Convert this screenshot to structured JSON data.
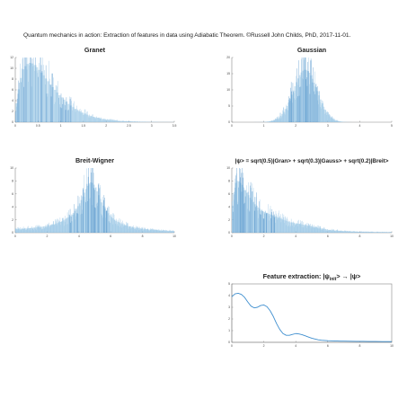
{
  "header": {
    "caption": "Quantum mechanics in action: Extraction of features in data using Adiabatic Theorem. ©Russell John Childs, PhD, 2017-11-01."
  },
  "colors": {
    "bar": "#8fc0e2",
    "bar_dense": "#3f88c5",
    "curve": "#3f8fcf",
    "axis": "#888888",
    "text": "#222222"
  },
  "chart_data": [
    {
      "id": "granet",
      "type": "bar",
      "title": "Granet",
      "xlim": [
        0,
        3.5
      ],
      "ylim": [
        0,
        12
      ],
      "xticks": [
        0,
        0.5,
        1,
        1.5,
        2,
        2.5,
        3,
        3.5
      ],
      "xtick_labels": [
        "0",
        "0.5",
        "1",
        "1.5",
        "2",
        "2.5",
        "3",
        "3.5"
      ],
      "yticks": [
        0,
        2,
        4,
        6,
        8,
        10,
        12
      ],
      "ytick_labels": [
        "0",
        "2",
        "4",
        "6",
        "8",
        "10",
        "12"
      ],
      "series": [
        {
          "x_start": 0.05,
          "x_step": 0.05,
          "values": [
            3.5,
            6.1,
            8.2,
            9.8,
            10.4,
            10.8,
            11.0,
            10.9,
            10.6,
            10.2,
            9.7,
            9.2,
            8.7,
            8.1,
            7.6,
            7.0,
            6.5,
            6.0,
            5.5,
            5.0,
            4.6,
            4.2,
            3.8,
            3.4,
            3.1,
            2.8,
            2.5,
            2.2,
            2.0,
            1.8,
            1.6,
            1.4,
            1.25,
            1.1,
            1.0,
            0.9,
            0.8,
            0.7,
            0.62,
            0.55,
            0.5,
            0.44,
            0.4,
            0.36,
            0.32,
            0.28,
            0.25,
            0.22,
            0.2,
            0.18,
            0.16,
            0.14,
            0.12,
            0.11,
            0.1,
            0.09,
            0.08,
            0.07,
            0.06,
            0.05,
            0.05,
            0.04,
            0.04,
            0.03,
            0.03,
            0.03,
            0.02,
            0.02,
            0.02,
            0.02
          ]
        }
      ]
    },
    {
      "id": "gaussian",
      "type": "bar",
      "title": "Gaussian",
      "xlim": [
        0,
        5
      ],
      "ylim": [
        0,
        20
      ],
      "xticks": [
        0,
        1,
        2,
        3,
        4,
        5
      ],
      "xtick_labels": [
        "0",
        "1",
        "2",
        "3",
        "4",
        "5"
      ],
      "yticks": [
        0,
        5,
        10,
        15,
        20
      ],
      "ytick_labels": [
        "0",
        "5",
        "10",
        "15",
        "20"
      ],
      "series": [
        {
          "x_start": 0.05,
          "x_step": 0.05,
          "values": [
            0.0,
            0.0,
            0.0,
            0.0,
            0.0,
            0.0,
            0.0,
            0.0,
            0.0,
            0.0,
            0.0,
            0.0,
            0.0,
            0.0,
            0.01,
            0.01,
            0.01,
            0.02,
            0.03,
            0.05,
            0.08,
            0.11,
            0.16,
            0.23,
            0.33,
            0.46,
            0.63,
            0.86,
            1.15,
            1.52,
            1.99,
            2.56,
            3.25,
            4.07,
            5.01,
            6.07,
            7.24,
            8.49,
            9.79,
            11.1,
            12.37,
            13.54,
            14.56,
            15.37,
            15.92,
            16.19,
            16.17,
            15.86,
            15.27,
            14.44,
            13.41,
            12.22,
            10.94,
            9.62,
            8.3,
            7.04,
            5.86,
            4.8,
            3.85,
            3.04,
            2.36,
            1.8,
            1.35,
            0.99,
            0.71,
            0.5,
            0.35,
            0.23,
            0.15,
            0.1,
            0.06,
            0.04,
            0.02,
            0.01,
            0.01,
            0.0,
            0.0,
            0.0,
            0.0,
            0.0,
            0.0,
            0.0,
            0.0,
            0.0,
            0.0,
            0.0,
            0.0,
            0.0,
            0.0,
            0.0,
            0.0,
            0.0,
            0.0,
            0.0,
            0.0,
            0.0,
            0.0,
            0.0,
            0.0,
            0.0
          ]
        }
      ]
    },
    {
      "id": "breit-wigner",
      "type": "bar",
      "title": "Breit-Wigner",
      "xlim": [
        0,
        10
      ],
      "ylim": [
        0,
        10
      ],
      "xticks": [
        0,
        2,
        4,
        6,
        8,
        10
      ],
      "xtick_labels": [
        "0",
        "2",
        "4",
        "6",
        "8",
        "10"
      ],
      "yticks": [
        0,
        2,
        4,
        6,
        8,
        10
      ],
      "ytick_labels": [
        "0",
        "2",
        "4",
        "6",
        "8",
        "10"
      ],
      "series": [
        {
          "x_start": 0.1,
          "x_step": 0.1,
          "values": [
            0.55,
            0.57,
            0.58,
            0.6,
            0.62,
            0.63,
            0.65,
            0.67,
            0.69,
            0.71,
            0.74,
            0.76,
            0.79,
            0.82,
            0.85,
            0.88,
            0.91,
            0.95,
            0.99,
            1.04,
            1.08,
            1.14,
            1.19,
            1.26,
            1.32,
            1.4,
            1.48,
            1.57,
            1.67,
            1.78,
            1.91,
            2.05,
            2.2,
            2.38,
            2.58,
            2.81,
            3.07,
            3.37,
            3.72,
            4.11,
            4.55,
            5.05,
            5.6,
            6.18,
            6.75,
            7.25,
            7.62,
            7.78,
            7.71,
            7.42,
            6.95,
            6.39,
            5.8,
            5.22,
            4.67,
            4.18,
            3.74,
            3.35,
            3.01,
            2.71,
            2.45,
            2.22,
            2.02,
            1.85,
            1.69,
            1.56,
            1.44,
            1.33,
            1.23,
            1.15,
            1.07,
            1.0,
            0.94,
            0.88,
            0.83,
            0.78,
            0.74,
            0.7,
            0.66,
            0.63,
            0.6,
            0.57,
            0.54,
            0.52,
            0.49,
            0.47,
            0.45,
            0.43,
            0.41,
            0.4,
            0.38,
            0.37,
            0.35,
            0.34,
            0.33,
            0.32,
            0.31,
            0.3,
            0.29,
            0.28
          ]
        }
      ]
    },
    {
      "id": "superposition",
      "type": "bar",
      "title": "|ψ> = sqrt(0.5)|Gran> + sqrt(0.3)|Gauss> + sqrt(0.2)|Breit>",
      "xlim": [
        0,
        10
      ],
      "ylim": [
        0,
        10
      ],
      "xticks": [
        0,
        2,
        4,
        6,
        8,
        10
      ],
      "xtick_labels": [
        "0",
        "2",
        "4",
        "6",
        "8",
        "10"
      ],
      "yticks": [
        0,
        2,
        4,
        6,
        8,
        10
      ],
      "ytick_labels": [
        "0",
        "2",
        "4",
        "6",
        "8",
        "10"
      ],
      "series": [
        {
          "x_start": 0.1,
          "x_step": 0.1,
          "values": [
            4.2,
            6.3,
            7.7,
            8.0,
            7.9,
            7.7,
            7.4,
            7.0,
            6.6,
            6.2,
            5.8,
            5.4,
            5.1,
            4.7,
            4.4,
            4.2,
            3.9,
            3.7,
            3.5,
            3.3,
            3.2,
            3.1,
            3.0,
            2.9,
            2.8,
            2.7,
            2.6,
            2.5,
            2.4,
            2.3,
            2.2,
            2.1,
            2.0,
            1.9,
            1.8,
            1.7,
            1.6,
            1.55,
            1.5,
            1.45,
            1.4,
            1.4,
            1.35,
            1.3,
            1.25,
            1.2,
            1.15,
            1.1,
            1.05,
            1.0,
            0.95,
            0.9,
            0.85,
            0.8,
            0.75,
            0.7,
            0.65,
            0.6,
            0.55,
            0.5,
            0.45,
            0.42,
            0.4,
            0.37,
            0.35,
            0.33,
            0.31,
            0.29,
            0.27,
            0.26,
            0.25,
            0.24,
            0.23,
            0.22,
            0.21,
            0.2,
            0.19,
            0.18,
            0.17,
            0.16,
            0.16,
            0.15,
            0.15,
            0.14,
            0.14,
            0.13,
            0.13,
            0.12,
            0.12,
            0.11,
            0.11,
            0.11,
            0.1,
            0.1,
            0.1,
            0.1,
            0.1,
            0.1,
            0.1,
            0.1
          ]
        }
      ]
    },
    {
      "id": "feature-extraction",
      "type": "line",
      "title": "Feature extraction: |ψ",
      "title_sub": "init",
      "title_tail": "> → |ψ>",
      "xlim": [
        0,
        10
      ],
      "ylim": [
        0,
        5
      ],
      "xticks": [
        0,
        2,
        4,
        6,
        8,
        10
      ],
      "xtick_labels": [
        "0",
        "2",
        "4",
        "6",
        "8",
        "10"
      ],
      "yticks": [
        0,
        1,
        2,
        3,
        4,
        5
      ],
      "ytick_labels": [
        "0",
        "1",
        "2",
        "3",
        "4",
        "5"
      ],
      "series": [
        {
          "x": [
            0,
            0.2,
            0.4,
            0.6,
            0.8,
            1.0,
            1.2,
            1.4,
            1.6,
            1.8,
            2.0,
            2.2,
            2.4,
            2.6,
            2.8,
            3.0,
            3.2,
            3.4,
            3.6,
            3.8,
            4.0,
            4.2,
            4.4,
            4.6,
            4.8,
            5.0,
            5.2,
            5.4,
            5.6,
            5.8,
            6.0,
            6.2,
            6.4,
            6.6,
            6.8,
            7.0,
            7.4,
            7.8,
            8.2,
            8.6,
            9.0,
            9.4,
            9.8,
            10.0
          ],
          "y": [
            3.9,
            4.15,
            4.2,
            4.1,
            3.85,
            3.45,
            3.1,
            2.95,
            3.0,
            3.15,
            3.2,
            3.05,
            2.7,
            2.2,
            1.6,
            1.1,
            0.75,
            0.6,
            0.6,
            0.68,
            0.75,
            0.72,
            0.65,
            0.55,
            0.45,
            0.35,
            0.28,
            0.22,
            0.18,
            0.16,
            0.14,
            0.13,
            0.12,
            0.11,
            0.1,
            0.1,
            0.09,
            0.08,
            0.08,
            0.07,
            0.07,
            0.06,
            0.06,
            0.06
          ]
        }
      ]
    }
  ]
}
